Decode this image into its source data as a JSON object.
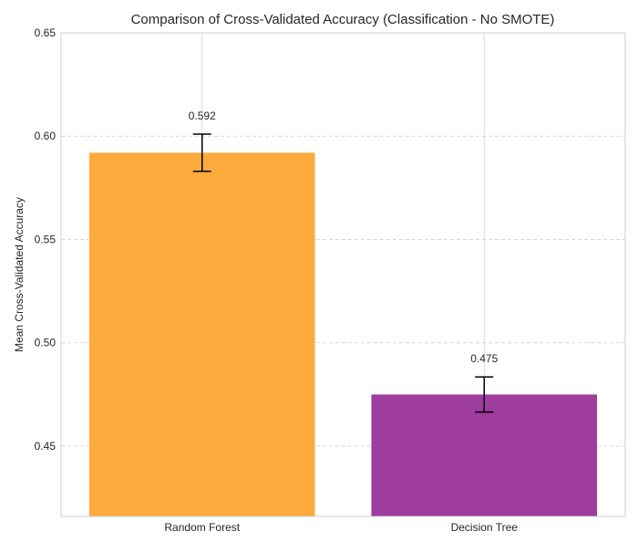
{
  "chart_data": {
    "type": "bar",
    "title": "Comparison of Cross-Validated Accuracy (Classification - No SMOTE)",
    "xlabel": "",
    "ylabel": "Mean Cross-Validated Accuracy",
    "categories": [
      "Random Forest",
      "Decision Tree"
    ],
    "values": [
      0.592,
      0.475
    ],
    "errors": [
      0.009,
      0.0085
    ],
    "data_labels": [
      "0.592",
      "0.475"
    ],
    "bar_colors": [
      "#FFA533",
      "#993399"
    ],
    "ylim": [
      0.416,
      0.65
    ],
    "yticks": [
      0.45,
      0.5,
      0.55,
      0.6,
      0.65
    ],
    "ytick_labels": [
      "0.45",
      "0.50",
      "0.55",
      "0.60",
      "0.65"
    ],
    "grid": true,
    "legend": false
  }
}
